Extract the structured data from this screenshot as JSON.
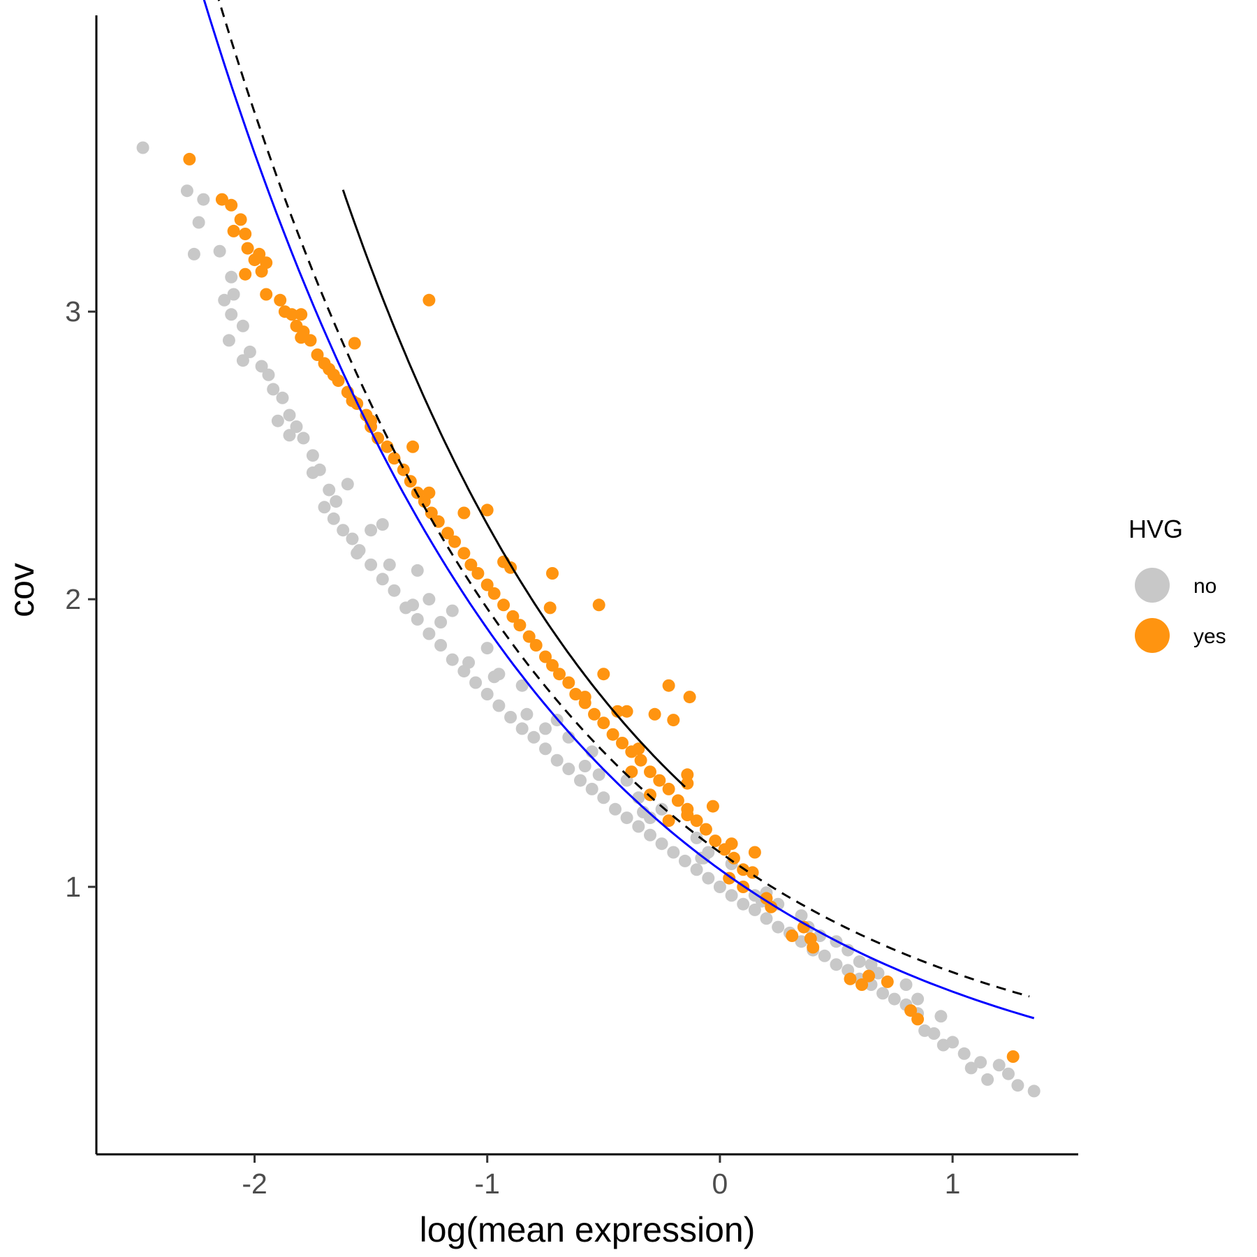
{
  "chart_data": {
    "type": "scatter",
    "xlabel": "log(mean expression)",
    "ylabel": "cov",
    "xlim": [
      -2.68,
      1.54
    ],
    "ylim": [
      0.07,
      4.03
    ],
    "x_ticks": [
      -2,
      -1,
      0,
      1
    ],
    "x_tick_labels": [
      "-2",
      "-1",
      "0",
      "1"
    ],
    "y_ticks": [
      1,
      2,
      3
    ],
    "y_tick_labels": [
      "1",
      "2",
      "3"
    ],
    "grid": false,
    "legend": {
      "title": "HVG",
      "placement": "right",
      "entries": [
        {
          "label": "no",
          "color": "#c8c8c8"
        },
        {
          "label": "yes",
          "color": "#ff9410"
        }
      ]
    },
    "series": [
      {
        "name": "no",
        "color": "#c8c8c8",
        "points": [
          [
            -2.48,
            3.57
          ],
          [
            -2.29,
            3.42
          ],
          [
            -2.22,
            3.39
          ],
          [
            -2.24,
            3.31
          ],
          [
            -2.26,
            3.2
          ],
          [
            -2.15,
            3.21
          ],
          [
            -2.1,
            3.12
          ],
          [
            -2.09,
            3.06
          ],
          [
            -2.13,
            3.04
          ],
          [
            -2.1,
            2.99
          ],
          [
            -2.11,
            2.9
          ],
          [
            -2.05,
            2.83
          ],
          [
            -2.02,
            2.86
          ],
          [
            -2.05,
            2.95
          ],
          [
            -1.97,
            2.81
          ],
          [
            -1.92,
            2.73
          ],
          [
            -1.94,
            2.78
          ],
          [
            -1.88,
            2.7
          ],
          [
            -1.85,
            2.64
          ],
          [
            -1.9,
            2.62
          ],
          [
            -1.82,
            2.6
          ],
          [
            -1.79,
            2.56
          ],
          [
            -1.75,
            2.5
          ],
          [
            -1.72,
            2.45
          ],
          [
            -1.68,
            2.38
          ],
          [
            -1.7,
            2.32
          ],
          [
            -1.66,
            2.28
          ],
          [
            -1.62,
            2.24
          ],
          [
            -1.58,
            2.21
          ],
          [
            -1.55,
            2.17
          ],
          [
            -1.5,
            2.12
          ],
          [
            -1.45,
            2.07
          ],
          [
            -1.4,
            2.03
          ],
          [
            -1.35,
            1.97
          ],
          [
            -1.3,
            1.93
          ],
          [
            -1.25,
            1.88
          ],
          [
            -1.2,
            1.84
          ],
          [
            -1.15,
            1.79
          ],
          [
            -1.1,
            1.75
          ],
          [
            -1.05,
            1.71
          ],
          [
            -1.0,
            1.67
          ],
          [
            -0.95,
            1.63
          ],
          [
            -0.9,
            1.59
          ],
          [
            -0.85,
            1.55
          ],
          [
            -0.8,
            1.52
          ],
          [
            -0.75,
            1.48
          ],
          [
            -0.7,
            1.44
          ],
          [
            -0.65,
            1.41
          ],
          [
            -0.6,
            1.37
          ],
          [
            -0.55,
            1.34
          ],
          [
            -0.5,
            1.31
          ],
          [
            -0.45,
            1.27
          ],
          [
            -0.4,
            1.24
          ],
          [
            -0.35,
            1.21
          ],
          [
            -0.3,
            1.18
          ],
          [
            -0.25,
            1.15
          ],
          [
            -0.2,
            1.12
          ],
          [
            -0.15,
            1.09
          ],
          [
            -0.1,
            1.06
          ],
          [
            -0.05,
            1.03
          ],
          [
            0.0,
            1.0
          ],
          [
            0.05,
            0.97
          ],
          [
            0.1,
            0.94
          ],
          [
            0.15,
            0.92
          ],
          [
            0.2,
            0.89
          ],
          [
            0.25,
            0.86
          ],
          [
            0.3,
            0.84
          ],
          [
            0.35,
            0.81
          ],
          [
            0.4,
            0.78
          ],
          [
            0.45,
            0.76
          ],
          [
            0.5,
            0.73
          ],
          [
            0.55,
            0.71
          ],
          [
            0.6,
            0.68
          ],
          [
            0.65,
            0.66
          ],
          [
            0.7,
            0.63
          ],
          [
            0.75,
            0.61
          ],
          [
            0.8,
            0.59
          ],
          [
            0.85,
            0.56
          ],
          [
            0.88,
            0.5
          ],
          [
            0.92,
            0.49
          ],
          [
            0.96,
            0.45
          ],
          [
            1.0,
            0.46
          ],
          [
            1.05,
            0.42
          ],
          [
            1.08,
            0.37
          ],
          [
            1.12,
            0.39
          ],
          [
            1.15,
            0.33
          ],
          [
            1.2,
            0.38
          ],
          [
            1.24,
            0.35
          ],
          [
            1.28,
            0.31
          ],
          [
            1.35,
            0.29
          ],
          [
            -1.6,
            2.4
          ],
          [
            -1.45,
            2.26
          ],
          [
            -1.3,
            2.1
          ],
          [
            -1.15,
            1.96
          ],
          [
            -1.0,
            1.83
          ],
          [
            -0.85,
            1.7
          ],
          [
            -0.7,
            1.58
          ],
          [
            -0.55,
            1.47
          ],
          [
            -0.4,
            1.37
          ],
          [
            -0.25,
            1.27
          ],
          [
            -0.1,
            1.17
          ],
          [
            0.05,
            1.08
          ],
          [
            0.2,
            0.98
          ],
          [
            0.35,
            0.9
          ],
          [
            0.5,
            0.81
          ],
          [
            0.65,
            0.73
          ],
          [
            0.8,
            0.66
          ],
          [
            -1.75,
            2.44
          ],
          [
            -1.5,
            2.24
          ],
          [
            -1.25,
            2.0
          ],
          [
            -0.95,
            1.74
          ],
          [
            -0.65,
            1.52
          ],
          [
            -0.35,
            1.31
          ],
          [
            -0.05,
            1.12
          ],
          [
            0.25,
            0.94
          ],
          [
            0.55,
            0.78
          ],
          [
            0.85,
            0.61
          ],
          [
            -1.56,
            2.16
          ],
          [
            -1.32,
            1.98
          ],
          [
            -1.08,
            1.78
          ],
          [
            -0.83,
            1.6
          ],
          [
            -0.58,
            1.42
          ],
          [
            -0.33,
            1.26
          ],
          [
            -0.08,
            1.1
          ],
          [
            0.18,
            0.95
          ],
          [
            0.43,
            0.83
          ],
          [
            0.68,
            0.7
          ],
          [
            0.95,
            0.55
          ],
          [
            -1.85,
            2.57
          ],
          [
            -1.65,
            2.34
          ],
          [
            -1.42,
            2.12
          ],
          [
            -1.2,
            1.92
          ],
          [
            -0.97,
            1.73
          ],
          [
            -0.75,
            1.55
          ],
          [
            -0.52,
            1.39
          ],
          [
            -0.3,
            1.24
          ],
          [
            -0.07,
            1.1
          ],
          [
            0.15,
            0.97
          ],
          [
            0.38,
            0.86
          ],
          [
            0.6,
            0.74
          ]
        ]
      },
      {
        "name": "yes",
        "color": "#ff9410",
        "points": [
          [
            -2.28,
            3.53
          ],
          [
            -2.14,
            3.39
          ],
          [
            -2.1,
            3.37
          ],
          [
            -2.06,
            3.32
          ],
          [
            -2.09,
            3.28
          ],
          [
            -2.04,
            3.27
          ],
          [
            -2.03,
            3.22
          ],
          [
            -1.98,
            3.2
          ],
          [
            -2.0,
            3.18
          ],
          [
            -1.95,
            3.17
          ],
          [
            -1.97,
            3.14
          ],
          [
            -2.04,
            3.13
          ],
          [
            -1.95,
            3.06
          ],
          [
            -1.89,
            3.04
          ],
          [
            -1.87,
            3.0
          ],
          [
            -1.84,
            2.99
          ],
          [
            -1.8,
            2.99
          ],
          [
            -1.82,
            2.95
          ],
          [
            -1.79,
            2.93
          ],
          [
            -1.8,
            2.91
          ],
          [
            -1.76,
            2.9
          ],
          [
            -1.73,
            2.85
          ],
          [
            -1.7,
            2.82
          ],
          [
            -1.68,
            2.8
          ],
          [
            -1.66,
            2.78
          ],
          [
            -1.64,
            2.76
          ],
          [
            -1.6,
            2.72
          ],
          [
            -1.58,
            2.69
          ],
          [
            -1.56,
            2.68
          ],
          [
            -1.52,
            2.64
          ],
          [
            -1.5,
            2.6
          ],
          [
            -1.47,
            2.56
          ],
          [
            -1.43,
            2.53
          ],
          [
            -1.4,
            2.49
          ],
          [
            -1.36,
            2.45
          ],
          [
            -1.33,
            2.41
          ],
          [
            -1.3,
            2.37
          ],
          [
            -1.27,
            2.34
          ],
          [
            -1.24,
            2.3
          ],
          [
            -1.21,
            2.27
          ],
          [
            -1.17,
            2.23
          ],
          [
            -1.14,
            2.2
          ],
          [
            -1.1,
            2.16
          ],
          [
            -1.07,
            2.12
          ],
          [
            -1.04,
            2.09
          ],
          [
            -1.0,
            2.05
          ],
          [
            -0.97,
            2.02
          ],
          [
            -0.93,
            1.98
          ],
          [
            -0.89,
            1.94
          ],
          [
            -0.86,
            1.91
          ],
          [
            -0.82,
            1.87
          ],
          [
            -0.79,
            1.84
          ],
          [
            -0.75,
            1.8
          ],
          [
            -0.72,
            1.77
          ],
          [
            -0.69,
            1.74
          ],
          [
            -0.65,
            1.71
          ],
          [
            -0.62,
            1.67
          ],
          [
            -0.58,
            1.64
          ],
          [
            -0.54,
            1.6
          ],
          [
            -0.5,
            1.57
          ],
          [
            -0.46,
            1.53
          ],
          [
            -0.42,
            1.5
          ],
          [
            -0.38,
            1.47
          ],
          [
            -0.34,
            1.44
          ],
          [
            -0.3,
            1.4
          ],
          [
            -0.26,
            1.37
          ],
          [
            -0.22,
            1.34
          ],
          [
            -0.18,
            1.3
          ],
          [
            -0.14,
            1.27
          ],
          [
            -0.1,
            1.23
          ],
          [
            -0.06,
            1.2
          ],
          [
            -0.02,
            1.16
          ],
          [
            0.02,
            1.13
          ],
          [
            0.06,
            1.1
          ],
          [
            0.1,
            1.06
          ],
          [
            -1.25,
            3.04
          ],
          [
            -1.57,
            2.89
          ],
          [
            -1.5,
            2.62
          ],
          [
            -1.32,
            2.53
          ],
          [
            -1.25,
            2.37
          ],
          [
            -1.1,
            2.3
          ],
          [
            -1.0,
            2.31
          ],
          [
            -0.93,
            2.13
          ],
          [
            -0.9,
            2.11
          ],
          [
            -0.72,
            2.09
          ],
          [
            -0.52,
            1.98
          ],
          [
            -0.73,
            1.97
          ],
          [
            -0.5,
            1.74
          ],
          [
            -0.58,
            1.66
          ],
          [
            -0.44,
            1.61
          ],
          [
            -0.4,
            1.61
          ],
          [
            -0.28,
            1.6
          ],
          [
            -0.2,
            1.58
          ],
          [
            -0.22,
            1.7
          ],
          [
            -0.13,
            1.66
          ],
          [
            -0.35,
            1.48
          ],
          [
            -0.38,
            1.4
          ],
          [
            -0.14,
            1.39
          ],
          [
            -0.14,
            1.36
          ],
          [
            -0.3,
            1.32
          ],
          [
            -0.22,
            1.23
          ],
          [
            -0.14,
            1.25
          ],
          [
            -0.03,
            1.28
          ],
          [
            0.05,
            1.15
          ],
          [
            0.15,
            1.12
          ],
          [
            0.14,
            1.05
          ],
          [
            0.1,
            1.0
          ],
          [
            0.04,
            1.03
          ],
          [
            0.2,
            0.96
          ],
          [
            0.22,
            0.93
          ],
          [
            0.36,
            0.86
          ],
          [
            0.31,
            0.83
          ],
          [
            0.39,
            0.82
          ],
          [
            0.4,
            0.79
          ],
          [
            0.56,
            0.68
          ],
          [
            0.61,
            0.66
          ],
          [
            0.64,
            0.69
          ],
          [
            0.72,
            0.67
          ],
          [
            0.82,
            0.57
          ],
          [
            0.85,
            0.54
          ],
          [
            1.26,
            0.41
          ]
        ]
      }
    ],
    "lines": [
      {
        "style": "solid",
        "color": "#000000",
        "x": [
          -1.62,
          -1.5,
          -1.25,
          -1.0,
          -0.75,
          -0.5,
          -0.25,
          -0.15
        ]
      },
      {
        "style": "dashed",
        "color": "#000000",
        "x": [
          -2.48,
          -2.25,
          -2.0,
          -1.75,
          -1.5,
          -1.25,
          -1.0,
          -0.75,
          -0.5,
          -0.25,
          0.0,
          0.25,
          0.5,
          0.75,
          1.0,
          1.25,
          1.33
        ]
      },
      {
        "style": "solid",
        "color": "#0000ff",
        "x": [
          -2.48,
          -2.25,
          -2.0,
          -1.75,
          -1.5,
          -1.25,
          -1.0,
          -0.75,
          -0.5,
          -0.25,
          0.0,
          0.25,
          0.5,
          0.75,
          1.0,
          1.25,
          1.35
        ]
      }
    ]
  }
}
